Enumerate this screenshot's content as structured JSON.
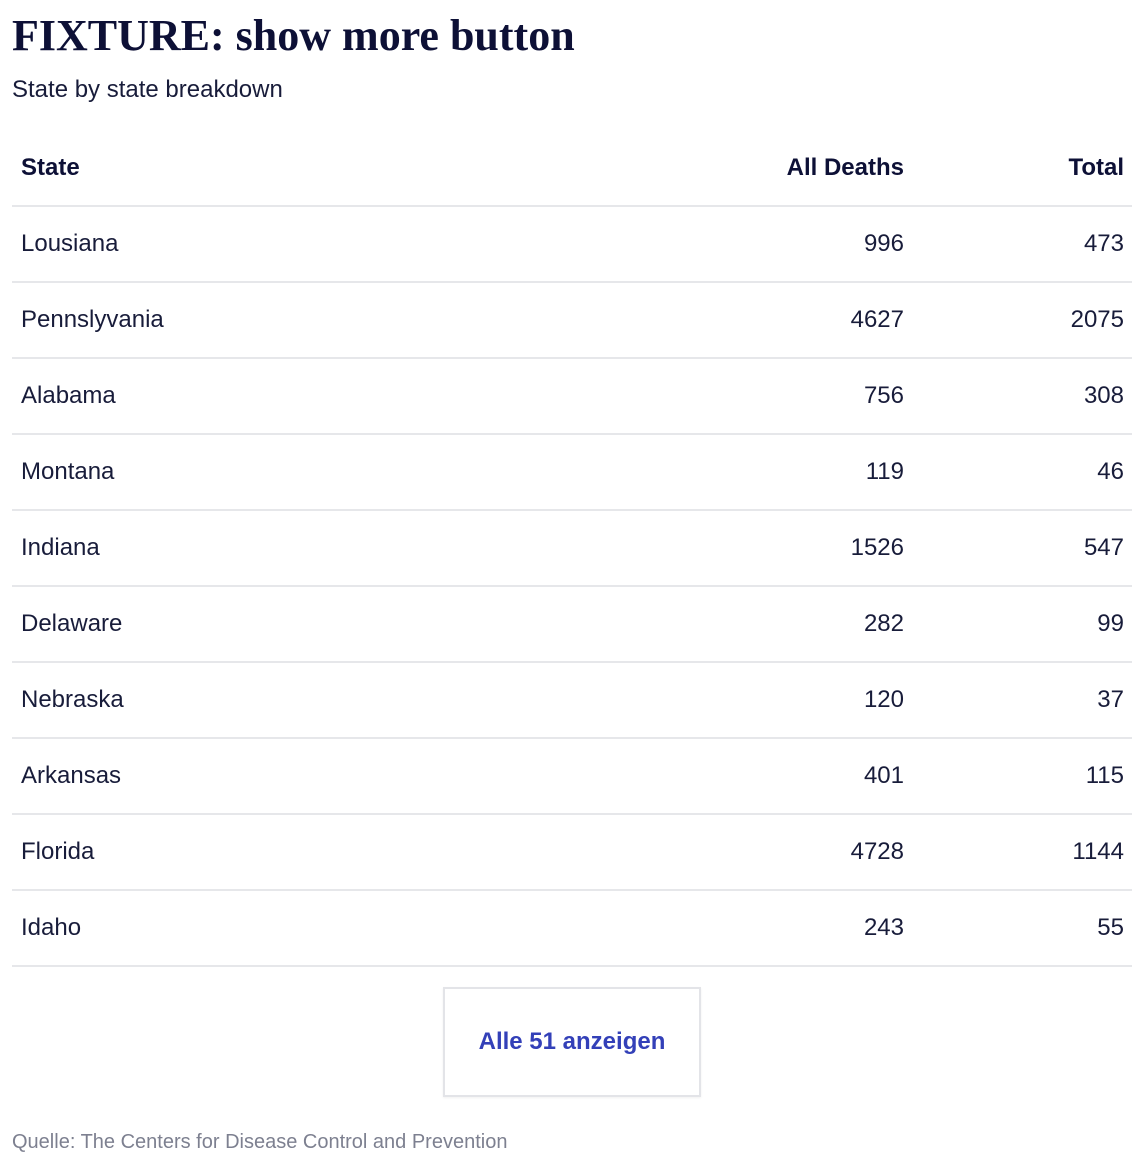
{
  "header": {
    "title": "FIXTURE: show more button",
    "subtitle": "State by state breakdown"
  },
  "table": {
    "columns": {
      "state": "State",
      "all_deaths": "All Deaths",
      "total": "Total"
    },
    "rows": [
      {
        "state": "Lousiana",
        "all_deaths": "996",
        "total": "473"
      },
      {
        "state": "Pennslyvania",
        "all_deaths": "4627",
        "total": "2075"
      },
      {
        "state": "Alabama",
        "all_deaths": "756",
        "total": "308"
      },
      {
        "state": "Montana",
        "all_deaths": "119",
        "total": "46"
      },
      {
        "state": "Indiana",
        "all_deaths": "1526",
        "total": "547"
      },
      {
        "state": "Delaware",
        "all_deaths": "282",
        "total": "99"
      },
      {
        "state": "Nebraska",
        "all_deaths": "120",
        "total": "37"
      },
      {
        "state": "Arkansas",
        "all_deaths": "401",
        "total": "115"
      },
      {
        "state": "Florida",
        "all_deaths": "4728",
        "total": "1144"
      },
      {
        "state": "Idaho",
        "all_deaths": "243",
        "total": "55"
      }
    ]
  },
  "show_more": {
    "label": "Alle 51 anzeigen"
  },
  "footer": {
    "source": "Quelle: The Centers for Disease Control and Prevention"
  },
  "colors": {
    "text": "#181c3a",
    "title": "#0d1036",
    "button_text": "#3340b8",
    "source_text": "#7d8090",
    "divider": "#e6e7ea"
  }
}
